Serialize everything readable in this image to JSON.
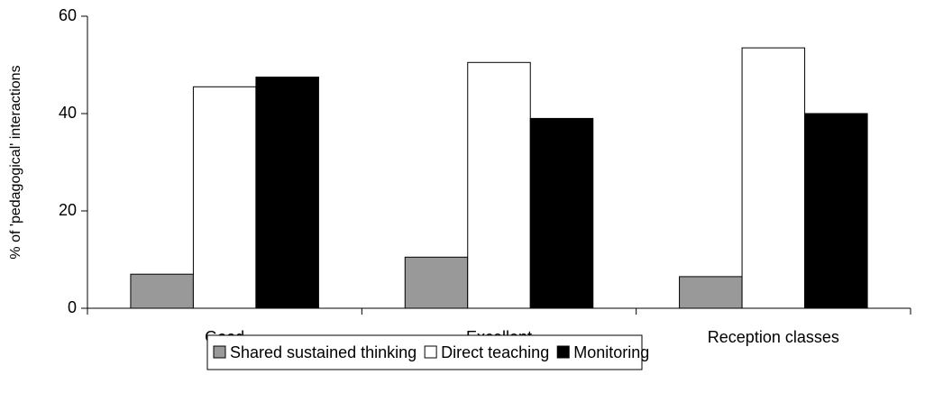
{
  "chart_data": {
    "type": "bar",
    "categories": [
      "Good",
      "Excellent",
      "Reception classes"
    ],
    "ylabel": "% of 'pedagogical' interactions",
    "series": [
      {
        "name": "Shared sustained thinking",
        "color": "#999999",
        "values": [
          7,
          10.5,
          6.5
        ]
      },
      {
        "name": "Direct teaching",
        "color": "#ffffff",
        "values": [
          45.5,
          50.5,
          53.5
        ]
      },
      {
        "name": "Monitoring",
        "color": "#000000",
        "values": [
          47.5,
          39,
          40
        ]
      }
    ],
    "ylim": [
      0,
      60
    ],
    "yticks": [
      0,
      20,
      40,
      60
    ],
    "grid": false,
    "legend": "bottom"
  }
}
